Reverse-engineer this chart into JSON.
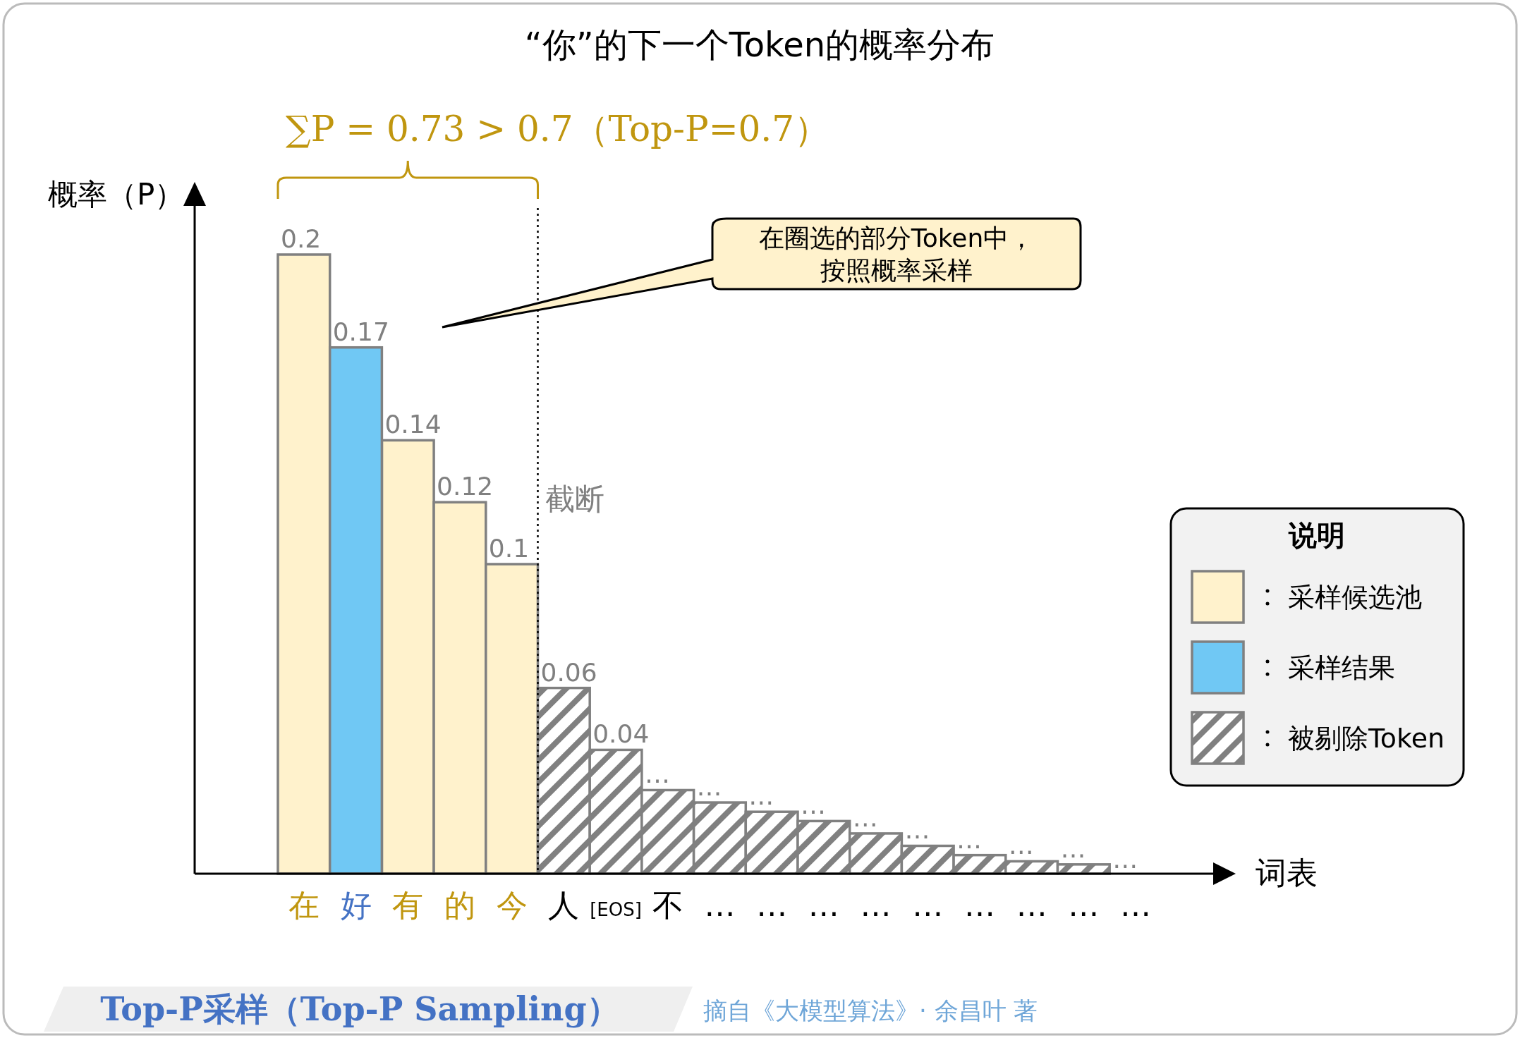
{
  "chart_data": {
    "type": "bar",
    "title": "“你”的下一个Token的概率分布",
    "subtitle": "Top-P采样（Top-P Sampling）",
    "ylabel": "概率（P）",
    "xlabel": "词表",
    "legend_title": "说明",
    "legend": "right",
    "categories": [
      "在",
      "好",
      "有",
      "的",
      "今",
      "人",
      "[EOS]",
      "不",
      "…",
      "…",
      "…",
      "…",
      "…",
      "…",
      "…",
      "…",
      "…"
    ],
    "series": [
      {
        "name": "采样候选池",
        "color": "#fff2cc",
        "values": [
          0.2,
          null,
          0.14,
          0.12,
          0.1,
          null,
          null,
          null,
          null,
          null,
          null,
          null,
          null,
          null,
          null,
          null,
          null
        ],
        "value_labels": [
          "0.2",
          null,
          "0.14",
          "0.12",
          "0.1",
          null,
          null,
          null,
          null,
          null,
          null,
          null,
          null,
          null,
          null,
          null,
          null
        ]
      },
      {
        "name": "采样结果",
        "color": "#70c8f4",
        "values": [
          null,
          0.17,
          null,
          null,
          null,
          null,
          null,
          null,
          null,
          null,
          null,
          null,
          null,
          null,
          null,
          null,
          null
        ],
        "value_labels": [
          null,
          "0.17",
          null,
          null,
          null,
          null,
          null,
          null,
          null,
          null,
          null,
          null,
          null,
          null,
          null,
          null,
          null
        ]
      },
      {
        "name": "被剔除Token",
        "color": "#808080",
        "values": [
          null,
          null,
          null,
          null,
          null,
          0.06,
          0.04,
          0.027,
          0.023,
          0.02,
          0.017,
          0.013,
          0.009,
          0.006,
          0.004,
          0.003,
          null
        ],
        "value_labels": [
          null,
          null,
          null,
          null,
          null,
          "0.06",
          "0.04",
          "…",
          "…",
          "…",
          "…",
          "…",
          "…",
          "…",
          "…",
          "…",
          "…"
        ]
      }
    ],
    "annotations": [
      "∑P = 0.73 > 0.7（Top-P=0.7）",
      "在圈选的部分Token中，按照概率采样",
      "摘自《大模型算法》· 余昌叶 著",
      "截断"
    ]
  }
}
